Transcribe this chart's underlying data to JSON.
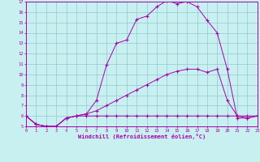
{
  "xlabel": "Windchill (Refroidissement éolien,°C)",
  "bg_color": "#c8f0f0",
  "grid_color": "#90c8d0",
  "line_color": "#aa00aa",
  "xlim": [
    0,
    23
  ],
  "ylim": [
    5,
    17
  ],
  "xticks": [
    0,
    1,
    2,
    3,
    4,
    5,
    6,
    7,
    8,
    9,
    10,
    11,
    12,
    13,
    14,
    15,
    16,
    17,
    18,
    19,
    20,
    21,
    22,
    23
  ],
  "yticks": [
    5,
    6,
    7,
    8,
    9,
    10,
    11,
    12,
    13,
    14,
    15,
    16,
    17
  ],
  "line1_x": [
    0,
    1,
    2,
    3,
    4,
    5,
    6,
    7,
    8,
    9,
    10,
    11,
    12,
    13,
    14,
    15,
    16,
    17,
    18,
    19,
    20,
    21,
    22,
    23
  ],
  "line1_y": [
    6.0,
    5.2,
    5.0,
    5.0,
    5.8,
    6.0,
    6.0,
    6.0,
    6.0,
    6.0,
    6.0,
    6.0,
    6.0,
    6.0,
    6.0,
    6.0,
    6.0,
    6.0,
    6.0,
    6.0,
    6.0,
    6.0,
    6.0,
    6.0
  ],
  "line2_x": [
    0,
    1,
    2,
    3,
    4,
    5,
    6,
    7,
    8,
    9,
    10,
    11,
    12,
    13,
    14,
    15,
    16,
    17,
    18,
    19,
    20,
    21,
    22,
    23
  ],
  "line2_y": [
    6.0,
    5.2,
    5.0,
    5.0,
    5.8,
    6.0,
    6.2,
    6.5,
    7.0,
    7.5,
    8.0,
    8.5,
    9.0,
    9.5,
    10.0,
    10.3,
    10.5,
    10.5,
    10.2,
    10.5,
    7.5,
    6.0,
    5.8,
    6.0
  ],
  "line3_x": [
    0,
    1,
    2,
    3,
    4,
    5,
    6,
    7,
    8,
    9,
    10,
    11,
    12,
    13,
    14,
    15,
    16,
    17,
    18,
    19,
    20,
    21,
    22,
    23
  ],
  "line3_y": [
    6.0,
    5.2,
    5.0,
    5.0,
    5.8,
    6.0,
    6.2,
    7.5,
    10.9,
    13.0,
    13.3,
    15.3,
    15.6,
    16.5,
    17.1,
    16.8,
    17.0,
    16.5,
    15.2,
    14.0,
    10.5,
    5.8,
    5.8,
    6.0
  ]
}
